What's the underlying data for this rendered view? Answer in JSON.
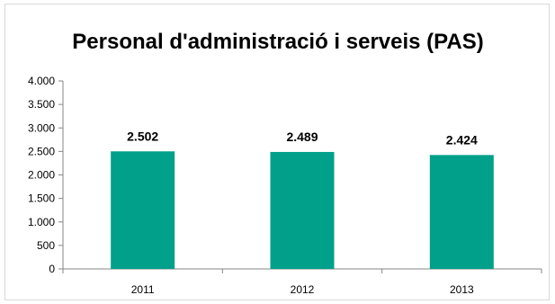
{
  "chart_data": {
    "type": "bar",
    "title": "Personal d'administració i serveis (PAS)",
    "categories": [
      "2011",
      "2012",
      "2013"
    ],
    "values": [
      2502,
      2489,
      2424
    ],
    "value_labels": [
      "2.502",
      "2.489",
      "2.424"
    ],
    "yticks": [
      0,
      500,
      1000,
      1500,
      2000,
      2500,
      3000,
      3500,
      4000
    ],
    "ytick_labels": [
      "0",
      "500",
      "1.000",
      "1.500",
      "2.000",
      "2.500",
      "3.000",
      "3.500",
      "4.000"
    ],
    "ylim": [
      0,
      4000
    ],
    "xlabel": "",
    "ylabel": "",
    "grid": false,
    "legend": "none",
    "bar_color": "#00a08a"
  }
}
